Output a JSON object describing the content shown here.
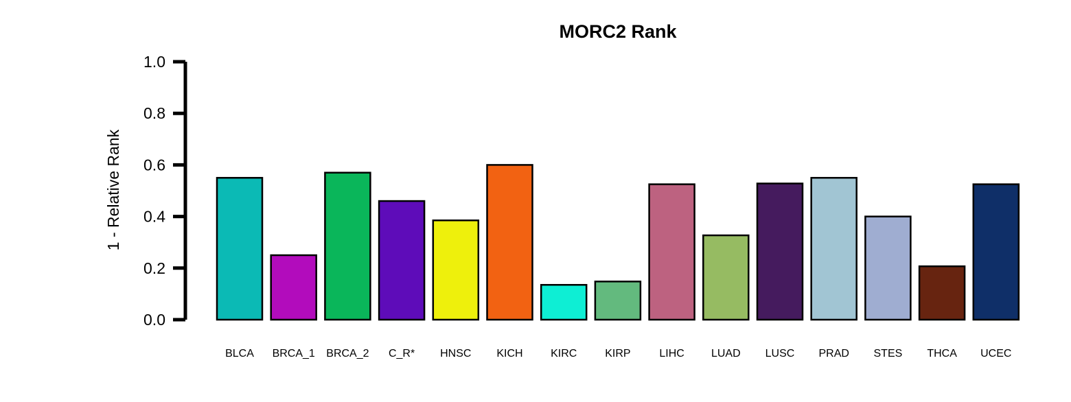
{
  "chart_data": {
    "type": "bar",
    "title": "MORC2 Rank",
    "xlabel": "",
    "ylabel": "1 - Relative Rank",
    "ylim": [
      0,
      1
    ],
    "yticks": [
      "0.0",
      "0.2",
      "0.4",
      "0.6",
      "0.8",
      "1.0"
    ],
    "categories": [
      "BLCA",
      "BRCA_1",
      "BRCA_2",
      "C_R*",
      "HNSC",
      "KICH",
      "KIRC",
      "KIRP",
      "LIHC",
      "LUAD",
      "LUSC",
      "PRAD",
      "STES",
      "THCA",
      "UCEC"
    ],
    "values": [
      0.55,
      0.25,
      0.57,
      0.46,
      0.385,
      0.6,
      0.135,
      0.148,
      0.525,
      0.327,
      0.528,
      0.55,
      0.4,
      0.207,
      0.525
    ],
    "colors": [
      "#0bbab5",
      "#b20cbc",
      "#0ab65a",
      "#5e0cb9",
      "#eef00c",
      "#f26212",
      "#0eeed4",
      "#63ba7e",
      "#bd6280",
      "#96bb62",
      "#451b5e",
      "#a1c5d3",
      "#9fadd1",
      "#672410",
      "#0f2f68"
    ],
    "grid": false,
    "legend": "none"
  }
}
